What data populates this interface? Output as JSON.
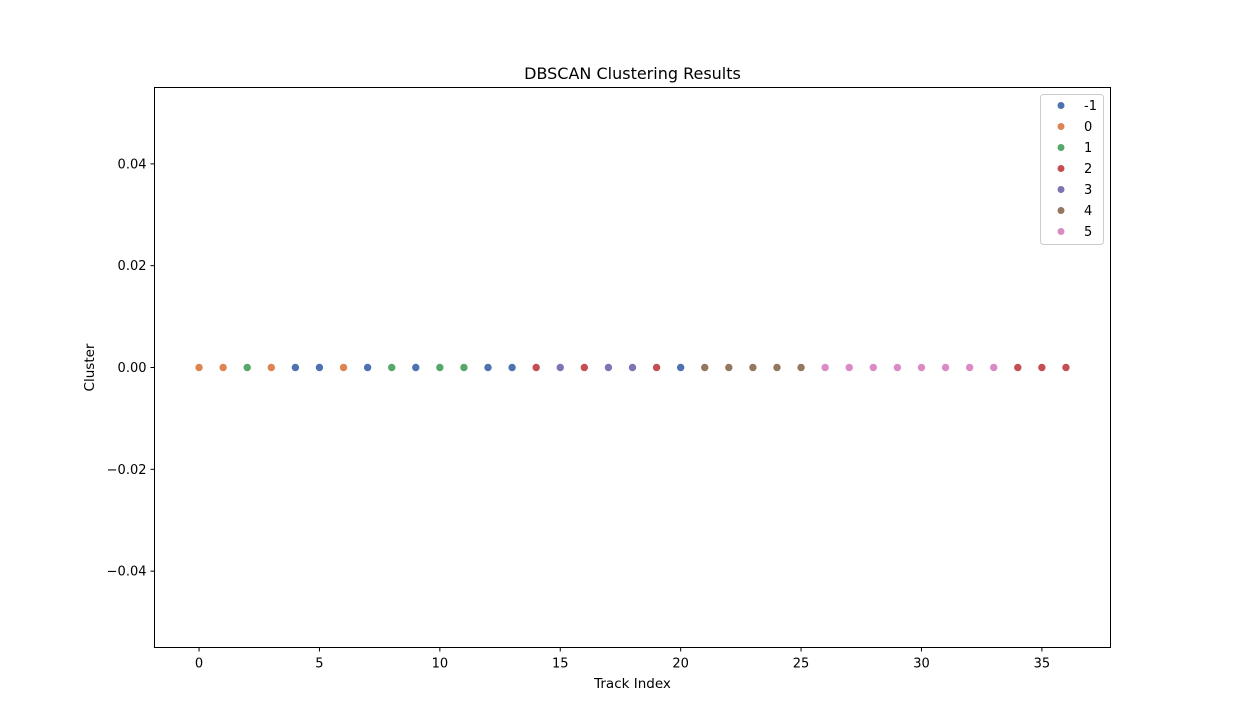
{
  "chart_data": {
    "type": "scatter",
    "title": "DBSCAN Clustering Results",
    "xlabel": "Track Index",
    "ylabel": "Cluster",
    "xlim": [
      -1.85,
      37.85
    ],
    "ylim": [
      -0.055,
      0.055
    ],
    "x_ticks": [
      0,
      5,
      10,
      15,
      20,
      25,
      30,
      35
    ],
    "x_tick_labels": [
      "0",
      "5",
      "10",
      "15",
      "20",
      "25",
      "30",
      "35"
    ],
    "y_ticks": [
      -0.04,
      -0.02,
      0.0,
      0.02,
      0.04
    ],
    "y_tick_labels": [
      "−0.04",
      "−0.02",
      "0.00",
      "0.02",
      "0.04"
    ],
    "grid": false,
    "legend_position": "top-right",
    "legend": [
      {
        "label": "-1",
        "color": "#4c72b0"
      },
      {
        "label": "0",
        "color": "#dd8452"
      },
      {
        "label": "1",
        "color": "#55a868"
      },
      {
        "label": "2",
        "color": "#c44e52"
      },
      {
        "label": "3",
        "color": "#8172b3"
      },
      {
        "label": "4",
        "color": "#937860"
      },
      {
        "label": "5",
        "color": "#da8bc3"
      }
    ],
    "points": [
      {
        "x": 0,
        "y": 0,
        "cluster": "0"
      },
      {
        "x": 1,
        "y": 0,
        "cluster": "0"
      },
      {
        "x": 2,
        "y": 0,
        "cluster": "1"
      },
      {
        "x": 3,
        "y": 0,
        "cluster": "0"
      },
      {
        "x": 4,
        "y": 0,
        "cluster": "-1"
      },
      {
        "x": 5,
        "y": 0,
        "cluster": "-1"
      },
      {
        "x": 6,
        "y": 0,
        "cluster": "0"
      },
      {
        "x": 7,
        "y": 0,
        "cluster": "-1"
      },
      {
        "x": 8,
        "y": 0,
        "cluster": "1"
      },
      {
        "x": 9,
        "y": 0,
        "cluster": "-1"
      },
      {
        "x": 10,
        "y": 0,
        "cluster": "1"
      },
      {
        "x": 11,
        "y": 0,
        "cluster": "1"
      },
      {
        "x": 12,
        "y": 0,
        "cluster": "-1"
      },
      {
        "x": 13,
        "y": 0,
        "cluster": "-1"
      },
      {
        "x": 14,
        "y": 0,
        "cluster": "2"
      },
      {
        "x": 15,
        "y": 0,
        "cluster": "3"
      },
      {
        "x": 16,
        "y": 0,
        "cluster": "2"
      },
      {
        "x": 17,
        "y": 0,
        "cluster": "3"
      },
      {
        "x": 18,
        "y": 0,
        "cluster": "3"
      },
      {
        "x": 19,
        "y": 0,
        "cluster": "2"
      },
      {
        "x": 20,
        "y": 0,
        "cluster": "-1"
      },
      {
        "x": 21,
        "y": 0,
        "cluster": "4"
      },
      {
        "x": 22,
        "y": 0,
        "cluster": "4"
      },
      {
        "x": 23,
        "y": 0,
        "cluster": "4"
      },
      {
        "x": 24,
        "y": 0,
        "cluster": "4"
      },
      {
        "x": 25,
        "y": 0,
        "cluster": "4"
      },
      {
        "x": 26,
        "y": 0,
        "cluster": "5"
      },
      {
        "x": 27,
        "y": 0,
        "cluster": "5"
      },
      {
        "x": 28,
        "y": 0,
        "cluster": "5"
      },
      {
        "x": 29,
        "y": 0,
        "cluster": "5"
      },
      {
        "x": 30,
        "y": 0,
        "cluster": "5"
      },
      {
        "x": 31,
        "y": 0,
        "cluster": "5"
      },
      {
        "x": 32,
        "y": 0,
        "cluster": "5"
      },
      {
        "x": 33,
        "y": 0,
        "cluster": "5"
      },
      {
        "x": 34,
        "y": 0,
        "cluster": "2"
      },
      {
        "x": 35,
        "y": 0,
        "cluster": "2"
      },
      {
        "x": 36,
        "y": 0,
        "cluster": "2"
      }
    ]
  }
}
